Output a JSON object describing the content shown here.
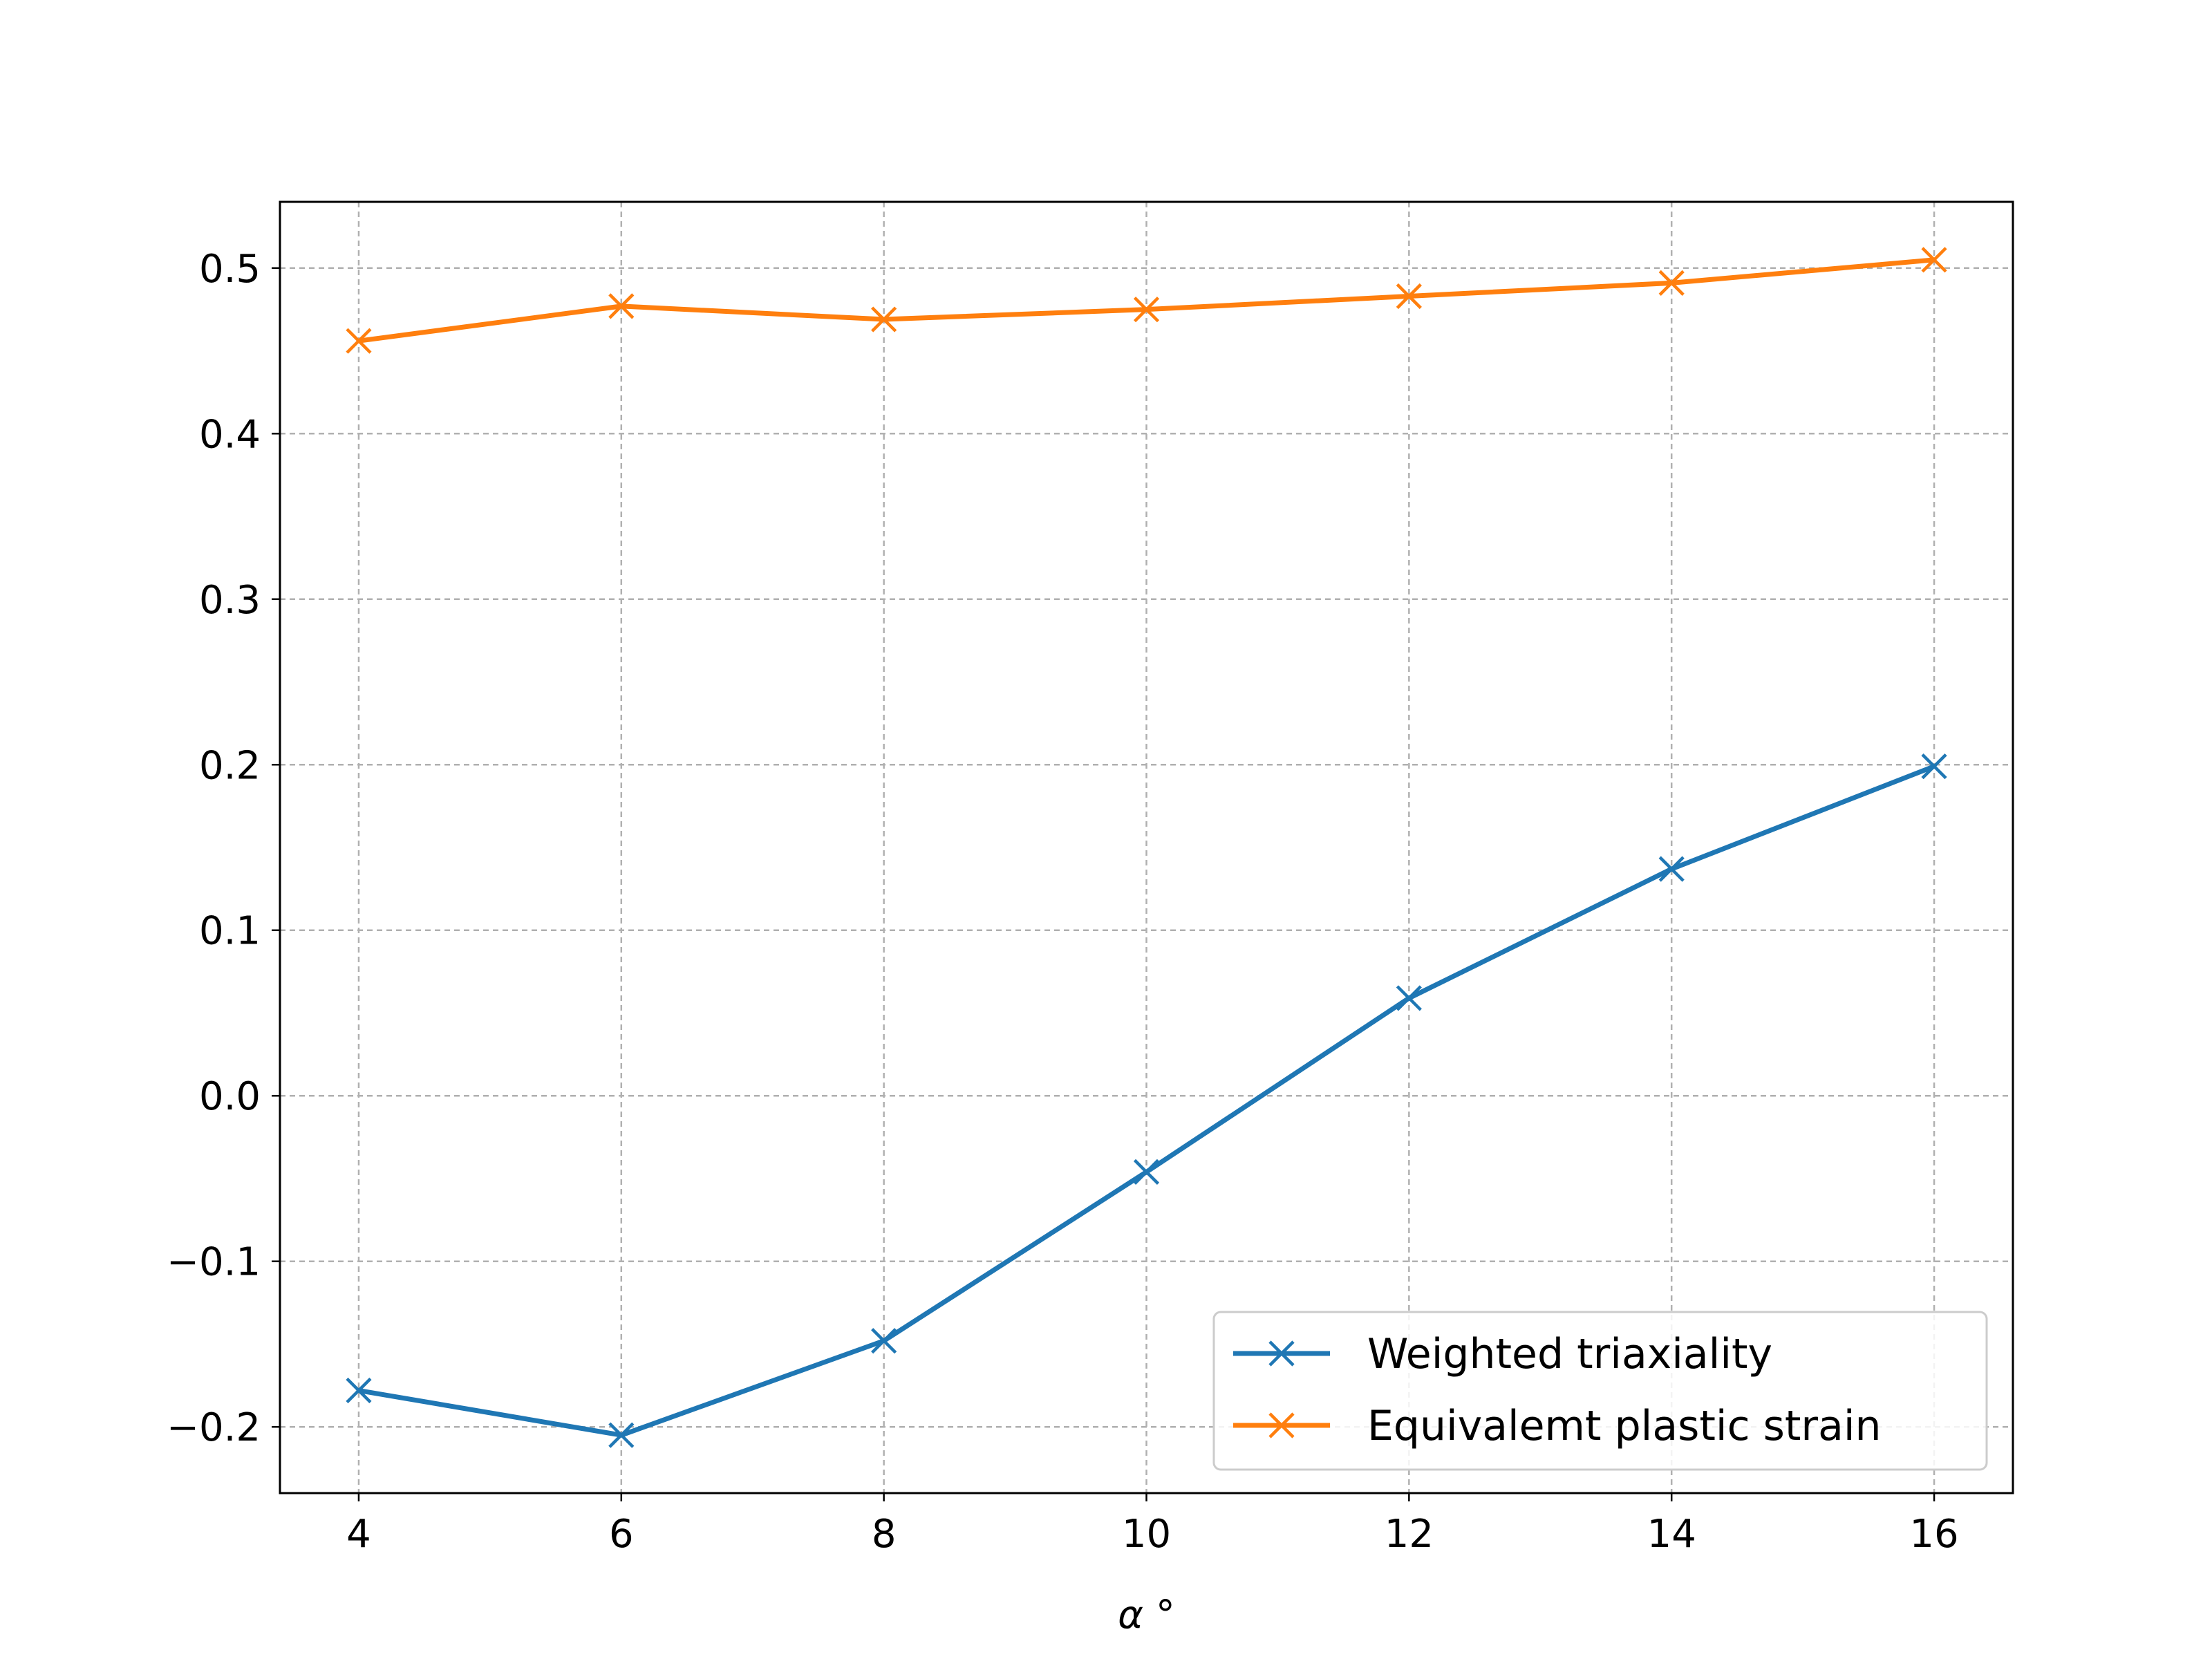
{
  "chart_data": {
    "type": "line",
    "title": "",
    "xlabel": "α °",
    "ylabel": "",
    "x": [
      4,
      6,
      8,
      10,
      12,
      14,
      16
    ],
    "xlim": [
      3.4,
      16.6
    ],
    "ylim": [
      -0.24,
      0.54
    ],
    "x_ticks": [
      "4",
      "6",
      "8",
      "10",
      "12",
      "14",
      "16"
    ],
    "y_ticks": [
      "−0.2",
      "−0.1",
      "0.0",
      "0.1",
      "0.2",
      "0.3",
      "0.4",
      "0.5"
    ],
    "y_tick_values": [
      -0.2,
      -0.1,
      0.0,
      0.1,
      0.2,
      0.3,
      0.4,
      0.5
    ],
    "grid": true,
    "legend_position": "lower-right",
    "marker": "x",
    "series": [
      {
        "name": "Weighted triaxiality",
        "color": "#1f77b4",
        "values": [
          -0.178,
          -0.205,
          -0.148,
          -0.046,
          0.059,
          0.137,
          0.199
        ]
      },
      {
        "name": "Equivalemt plastic strain",
        "color": "#ff7f0e",
        "values": [
          0.456,
          0.477,
          0.469,
          0.475,
          0.483,
          0.491,
          0.505
        ]
      }
    ]
  }
}
